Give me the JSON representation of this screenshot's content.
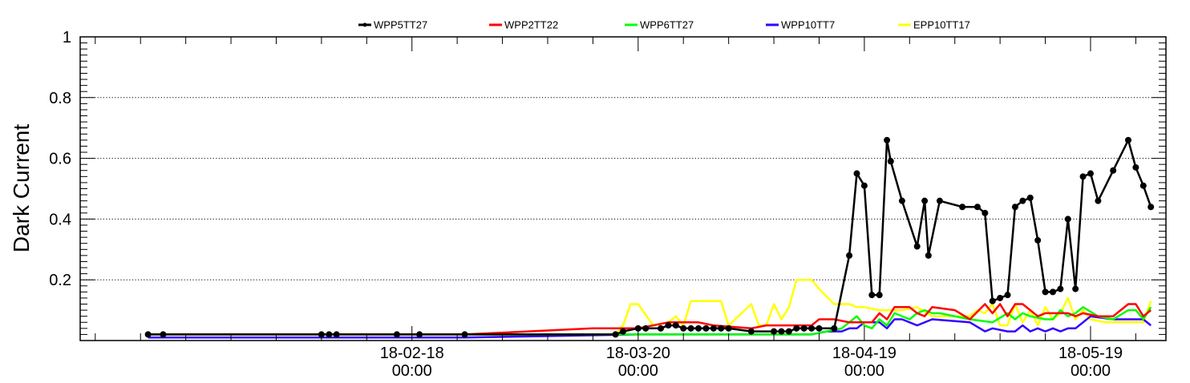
{
  "chart_data": {
    "type": "line",
    "title": "",
    "xlabel": "",
    "ylabel": "Dark Current",
    "xlim": [
      "2018-01-05",
      "2018-05-29"
    ],
    "ylim": [
      0,
      1
    ],
    "y_ticks": [
      "0.2",
      "0.4",
      "0.6",
      "0.8",
      "1"
    ],
    "y_tick_values": [
      0.2,
      0.4,
      0.6,
      0.8,
      1
    ],
    "x_ticks": [
      {
        "date": "2018-02-18",
        "line1": "18-02-18",
        "line2": "00:00"
      },
      {
        "date": "2018-03-20",
        "line1": "18-03-20",
        "line2": "00:00"
      },
      {
        "date": "2018-04-19",
        "line1": "18-04-19",
        "line2": "00:00"
      },
      {
        "date": "2018-05-19",
        "line1": "18-05-19",
        "line2": "00:00"
      }
    ],
    "grid": "horizontal dotted at major y ticks",
    "legend_position": "top",
    "series": [
      {
        "name": "WPP5TT27",
        "color": "#000000",
        "markers": true,
        "points": [
          [
            "2018-01-14",
            0.02
          ],
          [
            "2018-01-16",
            0.02
          ],
          [
            "2018-02-06",
            0.02
          ],
          [
            "2018-02-07",
            0.02
          ],
          [
            "2018-02-08",
            0.02
          ],
          [
            "2018-02-16",
            0.02
          ],
          [
            "2018-02-19",
            0.02
          ],
          [
            "2018-02-25",
            0.02
          ],
          [
            "2018-03-17",
            0.02
          ],
          [
            "2018-03-18",
            0.03
          ],
          [
            "2018-03-20",
            0.04
          ],
          [
            "2018-03-21",
            0.04
          ],
          [
            "2018-03-23",
            0.04
          ],
          [
            "2018-03-24",
            0.05
          ],
          [
            "2018-03-25",
            0.05
          ],
          [
            "2018-03-26",
            0.04
          ],
          [
            "2018-03-27",
            0.04
          ],
          [
            "2018-03-28",
            0.04
          ],
          [
            "2018-03-29",
            0.04
          ],
          [
            "2018-03-30",
            0.04
          ],
          [
            "2018-03-31",
            0.04
          ],
          [
            "2018-04-01",
            0.04
          ],
          [
            "2018-04-04",
            0.03
          ],
          [
            "2018-04-07",
            0.03
          ],
          [
            "2018-04-08",
            0.03
          ],
          [
            "2018-04-09",
            0.03
          ],
          [
            "2018-04-10",
            0.04
          ],
          [
            "2018-04-11",
            0.04
          ],
          [
            "2018-04-12",
            0.04
          ],
          [
            "2018-04-13",
            0.04
          ],
          [
            "2018-04-15",
            0.04
          ],
          [
            "2018-04-17",
            0.28
          ],
          [
            "2018-04-18",
            0.55
          ],
          [
            "2018-04-19",
            0.51
          ],
          [
            "2018-04-20",
            0.15
          ],
          [
            "2018-04-21",
            0.15
          ],
          [
            "2018-04-22",
            0.66
          ],
          [
            "2018-04-22.5",
            0.59
          ],
          [
            "2018-04-24",
            0.46
          ],
          [
            "2018-04-26",
            0.31
          ],
          [
            "2018-04-27",
            0.46
          ],
          [
            "2018-04-27.5",
            0.28
          ],
          [
            "2018-04-29",
            0.46
          ],
          [
            "2018-05-02",
            0.44
          ],
          [
            "2018-05-04",
            0.44
          ],
          [
            "2018-05-05",
            0.42
          ],
          [
            "2018-05-06",
            0.13
          ],
          [
            "2018-05-07",
            0.14
          ],
          [
            "2018-05-08",
            0.15
          ],
          [
            "2018-05-09",
            0.44
          ],
          [
            "2018-05-10",
            0.46
          ],
          [
            "2018-05-11",
            0.47
          ],
          [
            "2018-05-12",
            0.33
          ],
          [
            "2018-05-13",
            0.16
          ],
          [
            "2018-05-14",
            0.16
          ],
          [
            "2018-05-15",
            0.17
          ],
          [
            "2018-05-16",
            0.4
          ],
          [
            "2018-05-17",
            0.17
          ],
          [
            "2018-05-18",
            0.54
          ],
          [
            "2018-05-19",
            0.55
          ],
          [
            "2018-05-20",
            0.46
          ],
          [
            "2018-05-22",
            0.56
          ],
          [
            "2018-05-24",
            0.66
          ],
          [
            "2018-05-25",
            0.57
          ],
          [
            "2018-05-26",
            0.51
          ],
          [
            "2018-05-27",
            0.44
          ]
        ]
      },
      {
        "name": "WPP2TT22",
        "color": "#ff0000",
        "markers": false,
        "points": [
          [
            "2018-01-14",
            0.02
          ],
          [
            "2018-02-25",
            0.02
          ],
          [
            "2018-03-14",
            0.04
          ],
          [
            "2018-03-17",
            0.04
          ],
          [
            "2018-03-20",
            0.04
          ],
          [
            "2018-03-24",
            0.06
          ],
          [
            "2018-03-28",
            0.06
          ],
          [
            "2018-03-30",
            0.05
          ],
          [
            "2018-04-04",
            0.04
          ],
          [
            "2018-04-06",
            0.05
          ],
          [
            "2018-04-12",
            0.05
          ],
          [
            "2018-04-13",
            0.07
          ],
          [
            "2018-04-15",
            0.07
          ],
          [
            "2018-04-17",
            0.06
          ],
          [
            "2018-04-20",
            0.06
          ],
          [
            "2018-04-21",
            0.09
          ],
          [
            "2018-04-22",
            0.07
          ],
          [
            "2018-04-23",
            0.11
          ],
          [
            "2018-04-25",
            0.11
          ],
          [
            "2018-04-26",
            0.09
          ],
          [
            "2018-04-27",
            0.08
          ],
          [
            "2018-04-28",
            0.11
          ],
          [
            "2018-05-01",
            0.1
          ],
          [
            "2018-05-03",
            0.07
          ],
          [
            "2018-05-05",
            0.12
          ],
          [
            "2018-05-06",
            0.09
          ],
          [
            "2018-05-07",
            0.12
          ],
          [
            "2018-05-08",
            0.08
          ],
          [
            "2018-05-09",
            0.12
          ],
          [
            "2018-05-10",
            0.12
          ],
          [
            "2018-05-12",
            0.08
          ],
          [
            "2018-05-13",
            0.09
          ],
          [
            "2018-05-14",
            0.09
          ],
          [
            "2018-05-16",
            0.09
          ],
          [
            "2018-05-17",
            0.08
          ],
          [
            "2018-05-18",
            0.09
          ],
          [
            "2018-05-20",
            0.08
          ],
          [
            "2018-05-22",
            0.08
          ],
          [
            "2018-05-24",
            0.12
          ],
          [
            "2018-05-25",
            0.12
          ],
          [
            "2018-05-26",
            0.08
          ],
          [
            "2018-05-27",
            0.1
          ]
        ]
      },
      {
        "name": "WPP6TT27",
        "color": "#00ff00",
        "markers": false,
        "points": [
          [
            "2018-01-14",
            0.02
          ],
          [
            "2018-03-25",
            0.02
          ],
          [
            "2018-04-12",
            0.02
          ],
          [
            "2018-04-14",
            0.03
          ],
          [
            "2018-04-16",
            0.04
          ],
          [
            "2018-04-18",
            0.08
          ],
          [
            "2018-04-19",
            0.05
          ],
          [
            "2018-04-20",
            0.04
          ],
          [
            "2018-04-21",
            0.07
          ],
          [
            "2018-04-22",
            0.05
          ],
          [
            "2018-04-23",
            0.09
          ],
          [
            "2018-04-25",
            0.07
          ],
          [
            "2018-04-26",
            0.09
          ],
          [
            "2018-04-27",
            0.1
          ],
          [
            "2018-04-28",
            0.09
          ],
          [
            "2018-04-29",
            0.09
          ],
          [
            "2018-05-03",
            0.07
          ],
          [
            "2018-05-06",
            0.06
          ],
          [
            "2018-05-08",
            0.09
          ],
          [
            "2018-05-09",
            0.07
          ],
          [
            "2018-05-10",
            0.09
          ],
          [
            "2018-05-11",
            0.08
          ],
          [
            "2018-05-13",
            0.07
          ],
          [
            "2018-05-14",
            0.07
          ],
          [
            "2018-05-15",
            0.1
          ],
          [
            "2018-05-16",
            0.08
          ],
          [
            "2018-05-17",
            0.09
          ],
          [
            "2018-05-18",
            0.11
          ],
          [
            "2018-05-20",
            0.08
          ],
          [
            "2018-05-22",
            0.07
          ],
          [
            "2018-05-24",
            0.1
          ],
          [
            "2018-05-25",
            0.1
          ],
          [
            "2018-05-26",
            0.07
          ],
          [
            "2018-05-27",
            0.11
          ]
        ]
      },
      {
        "name": "WPP10TT7",
        "color": "#3300ff",
        "markers": false,
        "points": [
          [
            "2018-01-14",
            0.01
          ],
          [
            "2018-02-25",
            0.01
          ],
          [
            "2018-03-20",
            0.02
          ],
          [
            "2018-04-04",
            0.02
          ],
          [
            "2018-04-12",
            0.02
          ],
          [
            "2018-04-14",
            0.03
          ],
          [
            "2018-04-16",
            0.03
          ],
          [
            "2018-04-17",
            0.04
          ],
          [
            "2018-04-18",
            0.04
          ],
          [
            "2018-04-19",
            0.06
          ],
          [
            "2018-04-20",
            0.06
          ],
          [
            "2018-04-21",
            0.06
          ],
          [
            "2018-04-22",
            0.04
          ],
          [
            "2018-04-23",
            0.07
          ],
          [
            "2018-04-24",
            0.07
          ],
          [
            "2018-04-26",
            0.05
          ],
          [
            "2018-04-28",
            0.07
          ],
          [
            "2018-05-03",
            0.06
          ],
          [
            "2018-05-05",
            0.03
          ],
          [
            "2018-05-06",
            0.04
          ],
          [
            "2018-05-08",
            0.03
          ],
          [
            "2018-05-09",
            0.03
          ],
          [
            "2018-05-10",
            0.05
          ],
          [
            "2018-05-11",
            0.03
          ],
          [
            "2018-05-12",
            0.04
          ],
          [
            "2018-05-13",
            0.03
          ],
          [
            "2018-05-14",
            0.04
          ],
          [
            "2018-05-15",
            0.03
          ],
          [
            "2018-05-16",
            0.04
          ],
          [
            "2018-05-17",
            0.04
          ],
          [
            "2018-05-18",
            0.06
          ],
          [
            "2018-05-19",
            0.08
          ],
          [
            "2018-05-22",
            0.07
          ],
          [
            "2018-05-24",
            0.07
          ],
          [
            "2018-05-26",
            0.07
          ],
          [
            "2018-05-27",
            0.05
          ]
        ]
      },
      {
        "name": "EPP10TT17",
        "color": "#ffff00",
        "markers": false,
        "points": [
          [
            "2018-01-14",
            0.02
          ],
          [
            "2018-03-17",
            0.02
          ],
          [
            "2018-03-18",
            0.05
          ],
          [
            "2018-03-19",
            0.12
          ],
          [
            "2018-03-20",
            0.12
          ],
          [
            "2018-03-22",
            0.05
          ],
          [
            "2018-03-24",
            0.06
          ],
          [
            "2018-03-25",
            0.08
          ],
          [
            "2018-03-26",
            0.05
          ],
          [
            "2018-03-27",
            0.13
          ],
          [
            "2018-03-31",
            0.13
          ],
          [
            "2018-04-01",
            0.05
          ],
          [
            "2018-04-04",
            0.12
          ],
          [
            "2018-04-05",
            0.05
          ],
          [
            "2018-04-06",
            0.05
          ],
          [
            "2018-04-07",
            0.12
          ],
          [
            "2018-04-08",
            0.07
          ],
          [
            "2018-04-09",
            0.11
          ],
          [
            "2018-04-10",
            0.2
          ],
          [
            "2018-04-12",
            0.2
          ],
          [
            "2018-04-13",
            0.17
          ],
          [
            "2018-04-15",
            0.12
          ],
          [
            "2018-04-17",
            0.12
          ],
          [
            "2018-04-18",
            0.11
          ],
          [
            "2018-04-19",
            0.11
          ],
          [
            "2018-04-21",
            0.1
          ],
          [
            "2018-04-24",
            0.1
          ],
          [
            "2018-04-26",
            0.11
          ],
          [
            "2018-04-28",
            0.08
          ],
          [
            "2018-05-03",
            0.08
          ],
          [
            "2018-05-04",
            0.1
          ],
          [
            "2018-05-05",
            0.09
          ],
          [
            "2018-05-06",
            0.12
          ],
          [
            "2018-05-07",
            0.05
          ],
          [
            "2018-05-08",
            0.05
          ],
          [
            "2018-05-09",
            0.12
          ],
          [
            "2018-05-10",
            0.06
          ],
          [
            "2018-05-11",
            0.1
          ],
          [
            "2018-05-12",
            0.05
          ],
          [
            "2018-05-13",
            0.11
          ],
          [
            "2018-05-14",
            0.07
          ],
          [
            "2018-05-15",
            0.09
          ],
          [
            "2018-05-16",
            0.14
          ],
          [
            "2018-05-17",
            0.07
          ],
          [
            "2018-05-18",
            0.1
          ],
          [
            "2018-05-19",
            0.07
          ],
          [
            "2018-05-21",
            0.06
          ],
          [
            "2018-05-24",
            0.06
          ],
          [
            "2018-05-26",
            0.06
          ],
          [
            "2018-05-27",
            0.13
          ]
        ]
      }
    ]
  }
}
